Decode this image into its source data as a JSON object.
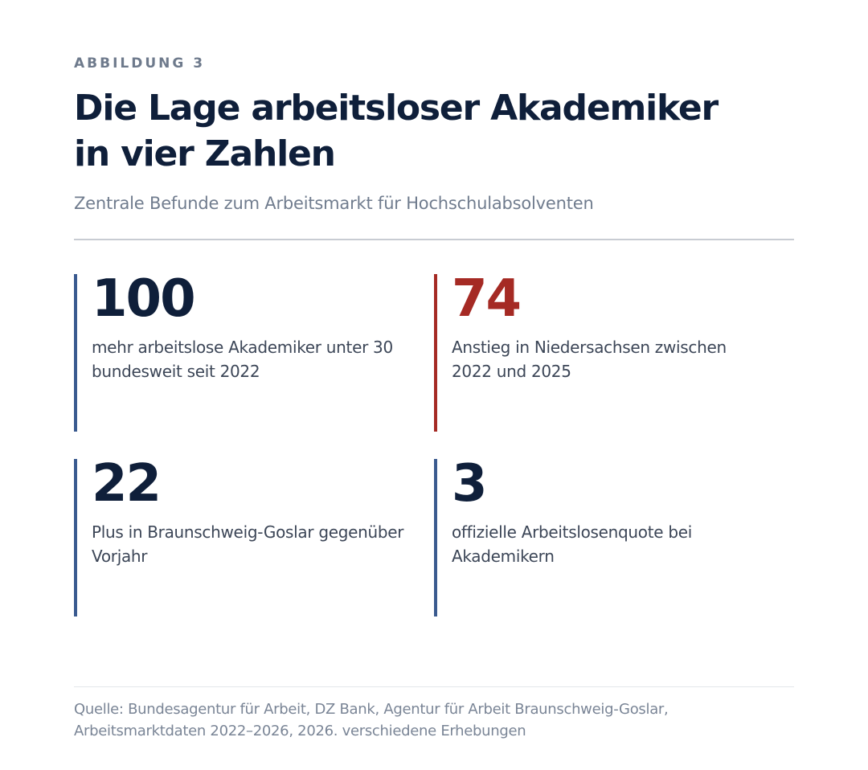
{
  "figure": {
    "eyebrow": "ABBILDUNG 3",
    "title_line1": "Die Lage arbeitsloser Akademiker",
    "title_line2": "in vier Zahlen",
    "subtitle": "Zentrale Befunde zum Arbeitsmarkt für Hochschulabsolventen"
  },
  "stats": [
    {
      "value": "100",
      "description": "mehr arbeitslose Akademiker unter 30 bundesweit seit 2022"
    },
    {
      "value": "74",
      "description": "Anstieg in Niedersachsen zwischen 2022 und 2025"
    },
    {
      "value": "22",
      "description": "Plus in Braunschweig-Goslar gegenüber Vorjahr"
    },
    {
      "value": "3",
      "description": "offizielle Arbeitslosenquote bei Akademikern"
    }
  ],
  "source": {
    "line1": "Quelle: Bundesagentur für Arbeit, DZ Bank, Agentur für Arbeit Braunschweig-Goslar,",
    "line2": "Arbeitsmarktdaten 2022–2026, 2026. verschiedene Erhebungen"
  },
  "colors": {
    "primary": "#0f1f3a",
    "bar_blue": "#3a5a8f",
    "accent_red": "#a52a24",
    "muted": "#707c8e"
  }
}
